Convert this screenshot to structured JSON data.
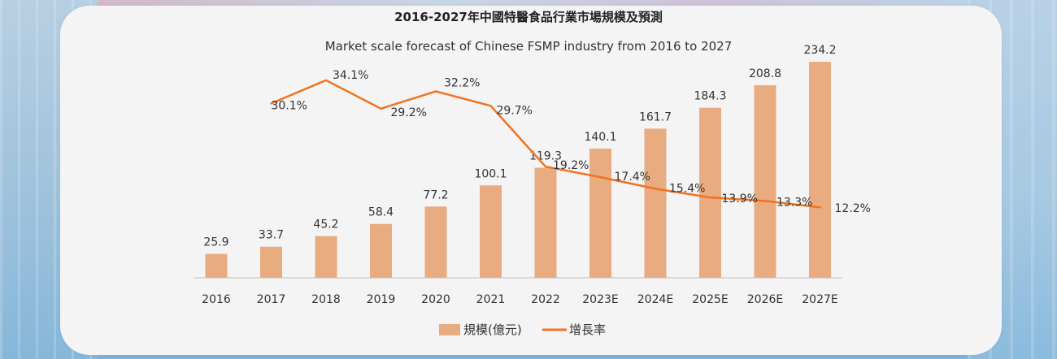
{
  "chart_data": {
    "type": "bar",
    "title": "2016-2027年中國特醫食品行業市場規模及預測",
    "subtitle": "Market scale forecast of Chinese FSMP industry from 2016 to 2027",
    "categories": [
      "2016",
      "2017",
      "2018",
      "2019",
      "2020",
      "2021",
      "2022",
      "2023E",
      "2024E",
      "2025E",
      "2026E",
      "2027E"
    ],
    "series": [
      {
        "name": "規模(億元)",
        "kind": "bar",
        "color": "#e9ab80",
        "values": [
          25.9,
          33.7,
          45.2,
          58.4,
          77.2,
          100.1,
          119.3,
          140.1,
          161.7,
          184.3,
          208.8,
          234.2
        ],
        "labels": [
          "25.9",
          "33.7",
          "45.2",
          "58.4",
          "77.2",
          "100.1",
          "119.3",
          "140.1",
          "161.7",
          "184.3",
          "208.8",
          "234.2"
        ]
      },
      {
        "name": "增長率",
        "kind": "line",
        "color": "#f07320",
        "values": [
          null,
          30.1,
          34.1,
          29.2,
          32.2,
          29.7,
          19.2,
          17.4,
          15.4,
          13.9,
          13.3,
          12.2
        ],
        "labels": [
          "",
          "30.1%",
          "34.1%",
          "29.2%",
          "32.2%",
          "29.7%",
          "19.2%",
          "17.4%",
          "15.4%",
          "13.9%",
          "13.3%",
          "12.2%"
        ]
      }
    ],
    "legend_position": "bottom-center",
    "grid": false
  },
  "colors": {
    "bar": "#e9ab80",
    "line": "#f07320",
    "text": "#333333",
    "axis": "#bfbfbf"
  }
}
